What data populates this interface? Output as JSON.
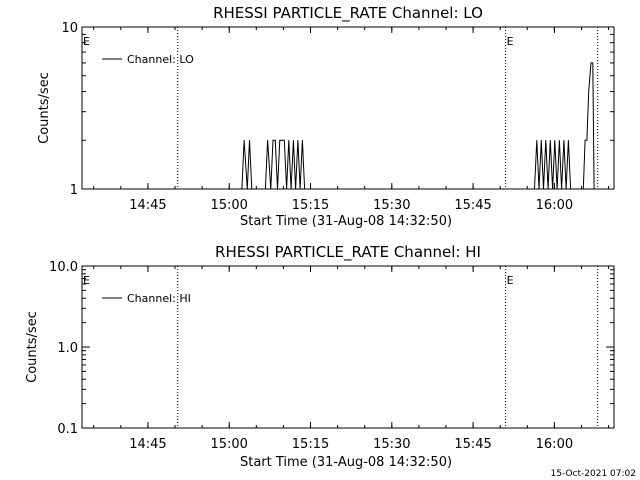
{
  "footer_timestamp": "15-Oct-2021 07:02",
  "chart_data": [
    {
      "type": "line",
      "title": "RHESSI PARTICLE_RATE Channel: LO",
      "xlabel": "Start Time (31-Aug-08 14:32:50)",
      "ylabel": "Counts/sec",
      "yscale": "log",
      "ylim": [
        1,
        10
      ],
      "ytick_values": [
        1,
        10
      ],
      "ytick_labels": [
        "1",
        "10"
      ],
      "xlim": [
        "14:32:50",
        "16:11:00"
      ],
      "xtick_labels": [
        "14:45",
        "15:00",
        "15:15",
        "15:30",
        "15:45",
        "16:00"
      ],
      "legend": {
        "position": "top-left",
        "label": "Channel: LO"
      },
      "event_markers": [
        {
          "time": "14:32:50",
          "label": "E"
        },
        {
          "time": "14:50:30",
          "label": ""
        },
        {
          "time": "15:51:00",
          "label": "E"
        },
        {
          "time": "16:08:00",
          "label": ""
        }
      ],
      "series": [
        {
          "name": "Channel: LO",
          "points": [
            [
              "14:32:50",
              1
            ],
            [
              "15:02:20",
              1
            ],
            [
              "15:02:45",
              2
            ],
            [
              "15:03:20",
              1
            ],
            [
              "15:03:45",
              2
            ],
            [
              "15:04:10",
              1
            ],
            [
              "15:06:40",
              1
            ],
            [
              "15:07:05",
              2
            ],
            [
              "15:07:40",
              1
            ],
            [
              "15:08:05",
              2
            ],
            [
              "15:08:30",
              2
            ],
            [
              "15:08:55",
              1
            ],
            [
              "15:09:20",
              2
            ],
            [
              "15:10:10",
              2
            ],
            [
              "15:10:35",
              1
            ],
            [
              "15:11:00",
              2
            ],
            [
              "15:11:25",
              1
            ],
            [
              "15:11:50",
              2
            ],
            [
              "15:12:15",
              1
            ],
            [
              "15:12:40",
              2
            ],
            [
              "15:13:05",
              1
            ],
            [
              "15:13:30",
              2
            ],
            [
              "15:13:55",
              1
            ],
            [
              "15:56:20",
              1
            ],
            [
              "15:56:45",
              2
            ],
            [
              "15:57:10",
              1
            ],
            [
              "15:57:35",
              2
            ],
            [
              "15:58:00",
              1
            ],
            [
              "15:58:25",
              2
            ],
            [
              "15:58:50",
              1
            ],
            [
              "15:59:15",
              2
            ],
            [
              "15:59:40",
              1
            ],
            [
              "16:00:05",
              2
            ],
            [
              "16:00:30",
              1
            ],
            [
              "16:00:55",
              2
            ],
            [
              "16:01:20",
              1
            ],
            [
              "16:01:45",
              2
            ],
            [
              "16:02:10",
              1
            ],
            [
              "16:02:35",
              2
            ],
            [
              "16:03:00",
              1
            ],
            [
              "16:05:20",
              1
            ],
            [
              "16:05:40",
              2
            ],
            [
              "16:06:00",
              2
            ],
            [
              "16:06:20",
              4
            ],
            [
              "16:06:45",
              6
            ],
            [
              "16:07:05",
              6
            ],
            [
              "16:07:20",
              1
            ],
            [
              "16:11:00",
              1
            ]
          ]
        }
      ]
    },
    {
      "type": "line",
      "title": "RHESSI PARTICLE_RATE Channel: HI",
      "xlabel": "Start Time (31-Aug-08 14:32:50)",
      "ylabel": "Counts/sec",
      "yscale": "log",
      "ylim": [
        0.1,
        10
      ],
      "ytick_values": [
        0.1,
        1,
        10
      ],
      "ytick_labels": [
        "0.1",
        "1.0",
        "10.0"
      ],
      "xlim": [
        "14:32:50",
        "16:11:00"
      ],
      "xtick_labels": [
        "14:45",
        "15:00",
        "15:15",
        "15:30",
        "15:45",
        "16:00"
      ],
      "legend": {
        "position": "top-left",
        "label": "Channel: HI"
      },
      "event_markers": [
        {
          "time": "14:32:50",
          "label": "E"
        },
        {
          "time": "14:50:30",
          "label": ""
        },
        {
          "time": "15:51:00",
          "label": "E"
        },
        {
          "time": "16:08:00",
          "label": ""
        }
      ],
      "series": [
        {
          "name": "Channel: HI",
          "points": []
        }
      ]
    }
  ]
}
